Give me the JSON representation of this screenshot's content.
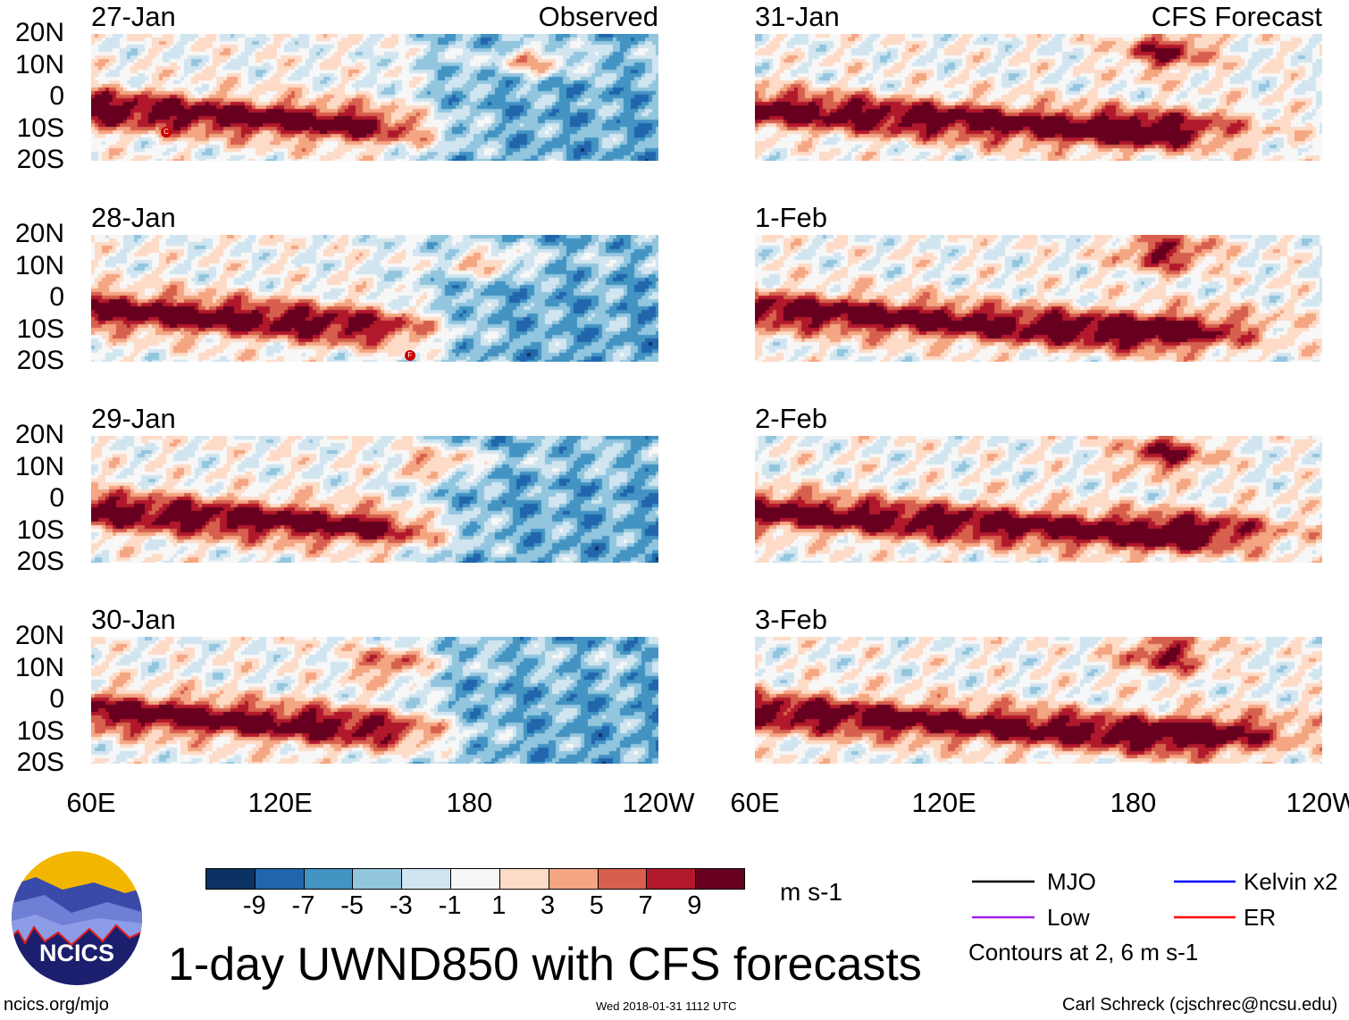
{
  "panels": {
    "left": [
      {
        "date": "27-Jan",
        "tag": "Observed"
      },
      {
        "date": "28-Jan"
      },
      {
        "date": "29-Jan"
      },
      {
        "date": "30-Jan"
      }
    ],
    "right": [
      {
        "date": "31-Jan",
        "tag": "CFS Forecast"
      },
      {
        "date": "1-Feb"
      },
      {
        "date": "2-Feb"
      },
      {
        "date": "3-Feb"
      }
    ]
  },
  "axes": {
    "lat_labels": [
      "20N",
      "10N",
      "0",
      "10S",
      "20S"
    ],
    "lon_labels": [
      "60E",
      "120E",
      "180",
      "120W"
    ]
  },
  "colorbar": {
    "colors": [
      "#0b3262",
      "#2166ac",
      "#4393c3",
      "#92c5de",
      "#d1e5f0",
      "#f7f7f7",
      "#fddbc7",
      "#f4a582",
      "#d6604d",
      "#b2182b",
      "#67001f"
    ],
    "ticks": [
      "-9",
      "-7",
      "-5",
      "-3",
      "-1",
      "1",
      "3",
      "5",
      "7",
      "9"
    ],
    "units": "m s-1"
  },
  "legend": {
    "items": [
      {
        "label": "MJO",
        "color": "#000000"
      },
      {
        "label": "Kelvin x2",
        "color": "#0000ff"
      },
      {
        "label": "Low",
        "color": "#a020f0"
      },
      {
        "label": "ER",
        "color": "#ff0000"
      }
    ],
    "note": "Contours at 2, 6 m s-1"
  },
  "title": "1-day UWND850 with CFS forecasts",
  "logo_text": "NCICS",
  "footer": {
    "url": "ncics.org/mjo",
    "timestamp": "Wed 2018-01-31 1112 UTC",
    "credit": "Carl Schreck (cjschrec@ncsu.edu)"
  },
  "storm_markers": [
    "C",
    "F"
  ]
}
